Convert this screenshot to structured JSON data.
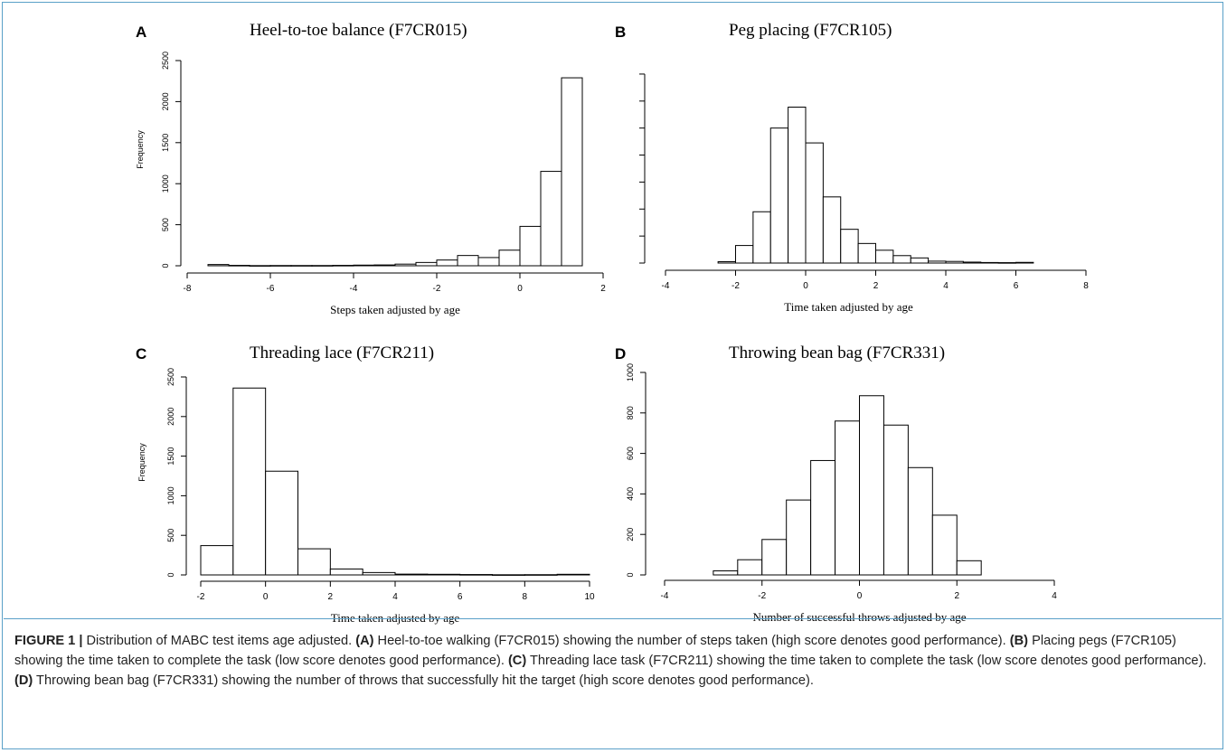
{
  "figure": {
    "caption": {
      "label": "FIGURE 1 |",
      "intro": " Distribution of MABC test items age adjusted. ",
      "parts": [
        {
          "tag": "(A)",
          "text": " Heel-to-toe walking (F7CR015) showing the number of steps taken (high score denotes good performance). "
        },
        {
          "tag": "(B)",
          "text": " Placing pegs (F7CR105) showing the time taken to complete the task (low score denotes good performance). "
        },
        {
          "tag": "(C)",
          "text": " Threading lace task (F7CR211) showing the time taken to complete the task (low score denotes good performance). "
        },
        {
          "tag": "(D)",
          "text": " Throwing bean bag (F7CR331) showing the number of throws that successfully hit the target (high score denotes good performance)."
        }
      ]
    }
  },
  "chart_data": [
    {
      "type": "bar",
      "panel": "A",
      "title": "Heel-to-toe balance (F7CR015)",
      "xlabel": "Steps taken adjusted by age",
      "ylabel": "Frequency",
      "xlim": [
        -8,
        2
      ],
      "ylim": [
        0,
        2500
      ],
      "xticks": [
        -8,
        -6,
        -4,
        -2,
        0,
        2
      ],
      "yticks": [
        0,
        500,
        1000,
        1500,
        2000,
        2500
      ],
      "show_y_tick_labels": true,
      "bin_width": 0.5,
      "bins": [
        {
          "x0": -7.5,
          "count": 15
        },
        {
          "x0": -7.0,
          "count": 5
        },
        {
          "x0": -6.5,
          "count": 2
        },
        {
          "x0": -6.0,
          "count": 3
        },
        {
          "x0": -5.5,
          "count": 3
        },
        {
          "x0": -5.0,
          "count": 3
        },
        {
          "x0": -4.5,
          "count": 5
        },
        {
          "x0": -4.0,
          "count": 8
        },
        {
          "x0": -3.5,
          "count": 10
        },
        {
          "x0": -3.0,
          "count": 20
        },
        {
          "x0": -2.5,
          "count": 40
        },
        {
          "x0": -2.0,
          "count": 70
        },
        {
          "x0": -1.5,
          "count": 125
        },
        {
          "x0": -1.0,
          "count": 100
        },
        {
          "x0": -0.5,
          "count": 190
        },
        {
          "x0": 0.0,
          "count": 480
        },
        {
          "x0": 0.5,
          "count": 1150
        },
        {
          "x0": 1.0,
          "count": 2290
        }
      ]
    },
    {
      "type": "bar",
      "panel": "B",
      "title": "Peg placing (F7CR105)",
      "xlabel": "Time taken adjusted by age",
      "ylabel": "",
      "xlim": [
        -4,
        8
      ],
      "ylim": [
        0,
        1500
      ],
      "xticks": [
        -4,
        -2,
        0,
        2,
        4,
        6,
        8
      ],
      "yticks": [
        0,
        200,
        400,
        600,
        800,
        1000,
        1200,
        1400
      ],
      "show_y_tick_labels": false,
      "bin_width": 0.5,
      "bins": [
        {
          "x0": -2.5,
          "count": 10
        },
        {
          "x0": -2.0,
          "count": 130
        },
        {
          "x0": -1.5,
          "count": 380
        },
        {
          "x0": -1.0,
          "count": 1000
        },
        {
          "x0": -0.5,
          "count": 1155
        },
        {
          "x0": 0.0,
          "count": 890
        },
        {
          "x0": 0.5,
          "count": 490
        },
        {
          "x0": 1.0,
          "count": 250
        },
        {
          "x0": 1.5,
          "count": 145
        },
        {
          "x0": 2.0,
          "count": 95
        },
        {
          "x0": 2.5,
          "count": 55
        },
        {
          "x0": 3.0,
          "count": 38
        },
        {
          "x0": 3.5,
          "count": 14
        },
        {
          "x0": 4.0,
          "count": 12
        },
        {
          "x0": 4.5,
          "count": 7
        },
        {
          "x0": 5.0,
          "count": 4
        },
        {
          "x0": 5.5,
          "count": 3
        },
        {
          "x0": 6.0,
          "count": 5
        }
      ]
    },
    {
      "type": "bar",
      "panel": "C",
      "title": "Threading lace (F7CR211)",
      "xlabel": "Time taken adjusted by age",
      "ylabel": "Frequency",
      "xlim": [
        -2,
        10
      ],
      "ylim": [
        0,
        2500
      ],
      "xticks": [
        -2,
        0,
        2,
        4,
        6,
        8,
        10
      ],
      "yticks": [
        0,
        500,
        1000,
        1500,
        2000,
        2500
      ],
      "show_y_tick_labels": true,
      "bin_width": 1,
      "bins": [
        {
          "x0": -2,
          "count": 370
        },
        {
          "x0": -1,
          "count": 2360
        },
        {
          "x0": 0,
          "count": 1310
        },
        {
          "x0": 1,
          "count": 330
        },
        {
          "x0": 2,
          "count": 75
        },
        {
          "x0": 3,
          "count": 30
        },
        {
          "x0": 4,
          "count": 10
        },
        {
          "x0": 5,
          "count": 8
        },
        {
          "x0": 6,
          "count": 5
        },
        {
          "x0": 7,
          "count": 2
        },
        {
          "x0": 8,
          "count": 3
        },
        {
          "x0": 9,
          "count": 8
        }
      ]
    },
    {
      "type": "bar",
      "panel": "D",
      "title": "Throwing bean bag (F7CR331)",
      "xlabel": "Number of successful throws adjusted by age",
      "ylabel": "",
      "xlim": [
        -4,
        4
      ],
      "ylim": [
        0,
        1000
      ],
      "xticks": [
        -4,
        -2,
        0,
        2,
        4
      ],
      "yticks": [
        0,
        200,
        400,
        600,
        800,
        1000
      ],
      "show_y_tick_labels": true,
      "bin_width": 0.5,
      "bins": [
        {
          "x0": -3.0,
          "count": 20
        },
        {
          "x0": -2.5,
          "count": 75
        },
        {
          "x0": -2.0,
          "count": 175
        },
        {
          "x0": -1.5,
          "count": 370
        },
        {
          "x0": -1.0,
          "count": 565
        },
        {
          "x0": -0.5,
          "count": 760
        },
        {
          "x0": 0.0,
          "count": 885
        },
        {
          "x0": 0.5,
          "count": 740
        },
        {
          "x0": 1.0,
          "count": 530
        },
        {
          "x0": 1.5,
          "count": 295
        },
        {
          "x0": 2.0,
          "count": 70
        }
      ]
    }
  ]
}
